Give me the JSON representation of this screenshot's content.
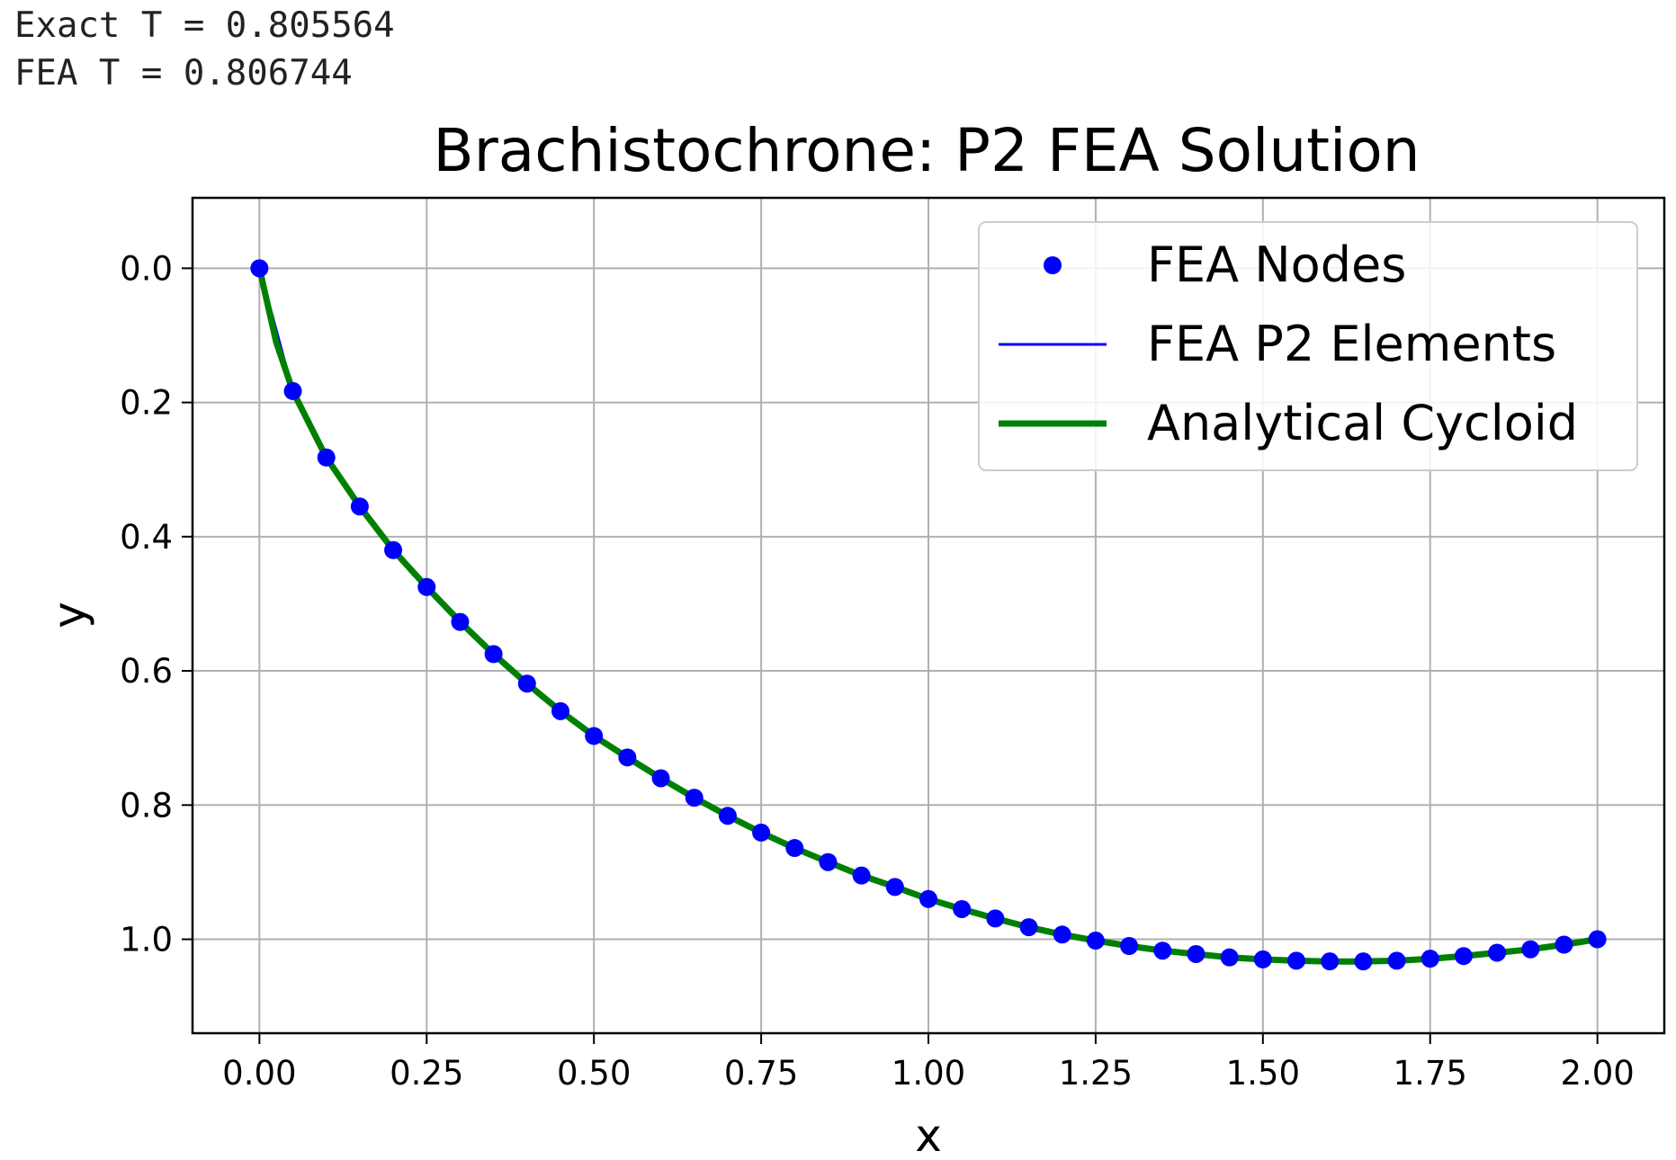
{
  "output": {
    "lines": [
      "Exact T = 0.805564",
      "FEA T = 0.806744"
    ]
  },
  "chart_data": {
    "type": "line",
    "title": "Brachistochrone: P2 FEA Solution",
    "xlabel": "x",
    "ylabel": "y",
    "xlim": [
      -0.1,
      2.1
    ],
    "ylim": [
      1.14,
      -0.105
    ],
    "y_inverted": true,
    "grid": true,
    "xticks": [
      0.0,
      0.25,
      0.5,
      0.75,
      1.0,
      1.25,
      1.5,
      1.75,
      2.0
    ],
    "xtick_labels": [
      "0.00",
      "0.25",
      "0.50",
      "0.75",
      "1.00",
      "1.25",
      "1.50",
      "1.75",
      "2.00"
    ],
    "yticks": [
      0.0,
      0.2,
      0.4,
      0.6,
      0.8,
      1.0
    ],
    "ytick_labels": [
      "0.0",
      "0.2",
      "0.4",
      "0.6",
      "0.8",
      "1.0"
    ],
    "legend_position": "top-right",
    "series": [
      {
        "name": "FEA Nodes",
        "style": "markers",
        "color": "#0000ff",
        "x": [
          0.0,
          0.05,
          0.1,
          0.15,
          0.2,
          0.25,
          0.3,
          0.35,
          0.4,
          0.45,
          0.5,
          0.55,
          0.6,
          0.65,
          0.7,
          0.75,
          0.8,
          0.85,
          0.9,
          0.95,
          1.0,
          1.05,
          1.1,
          1.15,
          1.2,
          1.25,
          1.3,
          1.35,
          1.4,
          1.45,
          1.5,
          1.55,
          1.6,
          1.65,
          1.7,
          1.75,
          1.8,
          1.85,
          1.9,
          1.95,
          2.0
        ],
        "y": [
          0.0,
          0.183,
          0.282,
          0.355,
          0.42,
          0.475,
          0.527,
          0.575,
          0.619,
          0.66,
          0.697,
          0.729,
          0.76,
          0.789,
          0.816,
          0.841,
          0.864,
          0.885,
          0.905,
          0.922,
          0.94,
          0.955,
          0.969,
          0.982,
          0.993,
          1.002,
          1.01,
          1.017,
          1.022,
          1.027,
          1.03,
          1.032,
          1.033,
          1.033,
          1.032,
          1.029,
          1.025,
          1.02,
          1.015,
          1.008,
          1.0
        ]
      },
      {
        "name": "FEA P2 Elements",
        "style": "line",
        "color": "#0000ff",
        "x": [
          0.0,
          0.05,
          0.1,
          0.15,
          0.2,
          0.25,
          0.3,
          0.35,
          0.4,
          0.45,
          0.5,
          0.55,
          0.6,
          0.65,
          0.7,
          0.75,
          0.8,
          0.85,
          0.9,
          0.95,
          1.0,
          1.05,
          1.1,
          1.15,
          1.2,
          1.25,
          1.3,
          1.35,
          1.4,
          1.45,
          1.5,
          1.55,
          1.6,
          1.65,
          1.7,
          1.75,
          1.8,
          1.85,
          1.9,
          1.95,
          2.0
        ],
        "y": [
          0.0,
          0.183,
          0.282,
          0.355,
          0.42,
          0.475,
          0.527,
          0.575,
          0.619,
          0.66,
          0.697,
          0.729,
          0.76,
          0.789,
          0.816,
          0.841,
          0.864,
          0.885,
          0.905,
          0.922,
          0.94,
          0.955,
          0.969,
          0.982,
          0.993,
          1.002,
          1.01,
          1.017,
          1.022,
          1.027,
          1.03,
          1.032,
          1.033,
          1.033,
          1.032,
          1.029,
          1.025,
          1.02,
          1.015,
          1.008,
          1.0
        ]
      },
      {
        "name": "Analytical Cycloid",
        "style": "line",
        "color": "#008000",
        "x": [
          0.0,
          0.025,
          0.05,
          0.1,
          0.15,
          0.2,
          0.25,
          0.3,
          0.35,
          0.4,
          0.45,
          0.5,
          0.55,
          0.6,
          0.65,
          0.7,
          0.75,
          0.8,
          0.85,
          0.9,
          0.95,
          1.0,
          1.05,
          1.1,
          1.15,
          1.2,
          1.25,
          1.3,
          1.35,
          1.4,
          1.45,
          1.5,
          1.55,
          1.6,
          1.65,
          1.7,
          1.75,
          1.8,
          1.85,
          1.9,
          1.95,
          2.0
        ],
        "y": [
          0.0,
          0.11,
          0.183,
          0.282,
          0.355,
          0.42,
          0.475,
          0.527,
          0.575,
          0.619,
          0.66,
          0.697,
          0.729,
          0.76,
          0.789,
          0.816,
          0.841,
          0.864,
          0.885,
          0.905,
          0.922,
          0.94,
          0.955,
          0.969,
          0.982,
          0.993,
          1.002,
          1.01,
          1.017,
          1.022,
          1.027,
          1.03,
          1.032,
          1.033,
          1.033,
          1.032,
          1.029,
          1.025,
          1.02,
          1.015,
          1.008,
          1.0
        ]
      }
    ]
  }
}
